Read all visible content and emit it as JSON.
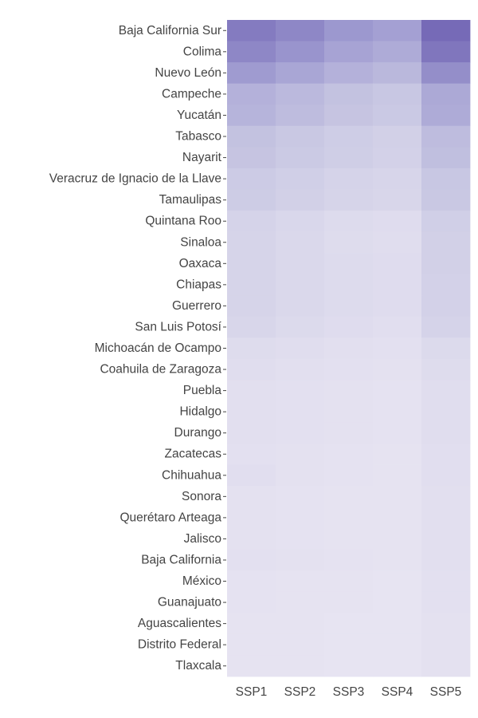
{
  "chart_data": {
    "type": "heatmap",
    "title": "",
    "xlabel": "",
    "ylabel": "",
    "x": [
      "SSP1",
      "SSP2",
      "SSP3",
      "SSP4",
      "SSP5"
    ],
    "y": [
      "Baja California Sur",
      "Colima",
      "Nuevo León",
      "Campeche",
      "Yucatán",
      "Tabasco",
      "Nayarit",
      "Veracruz de Ignacio de la Llave",
      "Tamaulipas",
      "Quintana Roo",
      "Sinaloa",
      "Oaxaca",
      "Chiapas",
      "Guerrero",
      "San Luis Potosí",
      "Michoacán de Ocampo",
      "Coahuila de Zaragoza",
      "Puebla",
      "Hidalgo",
      "Durango",
      "Zacatecas",
      "Chihuahua",
      "Sonora",
      "Querétaro Arteaga",
      "Jalisco",
      "Baja California",
      "México",
      "Guanajuato",
      "Aguascalientes",
      "Distrito Federal",
      "Tlaxcala"
    ],
    "values": [
      [
        0.85,
        0.78,
        0.68,
        0.62,
        0.95
      ],
      [
        0.78,
        0.7,
        0.6,
        0.54,
        0.88
      ],
      [
        0.66,
        0.58,
        0.5,
        0.45,
        0.74
      ],
      [
        0.5,
        0.44,
        0.38,
        0.34,
        0.56
      ],
      [
        0.48,
        0.42,
        0.36,
        0.32,
        0.54
      ],
      [
        0.38,
        0.33,
        0.28,
        0.25,
        0.42
      ],
      [
        0.36,
        0.31,
        0.27,
        0.24,
        0.4
      ],
      [
        0.3,
        0.26,
        0.22,
        0.2,
        0.34
      ],
      [
        0.29,
        0.25,
        0.21,
        0.19,
        0.33
      ],
      [
        0.22,
        0.18,
        0.14,
        0.12,
        0.26
      ],
      [
        0.21,
        0.17,
        0.13,
        0.11,
        0.25
      ],
      [
        0.21,
        0.17,
        0.14,
        0.12,
        0.25
      ],
      [
        0.21,
        0.17,
        0.14,
        0.12,
        0.24
      ],
      [
        0.21,
        0.17,
        0.14,
        0.12,
        0.24
      ],
      [
        0.19,
        0.15,
        0.12,
        0.1,
        0.22
      ],
      [
        0.13,
        0.11,
        0.09,
        0.08,
        0.15
      ],
      [
        0.11,
        0.09,
        0.08,
        0.07,
        0.13
      ],
      [
        0.09,
        0.08,
        0.07,
        0.06,
        0.11
      ],
      [
        0.09,
        0.08,
        0.07,
        0.06,
        0.11
      ],
      [
        0.09,
        0.08,
        0.07,
        0.06,
        0.11
      ],
      [
        0.08,
        0.07,
        0.06,
        0.05,
        0.1
      ],
      [
        0.1,
        0.07,
        0.06,
        0.05,
        0.1
      ],
      [
        0.07,
        0.06,
        0.05,
        0.05,
        0.09
      ],
      [
        0.07,
        0.06,
        0.05,
        0.05,
        0.09
      ],
      [
        0.07,
        0.06,
        0.05,
        0.05,
        0.09
      ],
      [
        0.08,
        0.07,
        0.06,
        0.05,
        0.09
      ],
      [
        0.06,
        0.05,
        0.05,
        0.04,
        0.08
      ],
      [
        0.06,
        0.05,
        0.05,
        0.04,
        0.08
      ],
      [
        0.05,
        0.05,
        0.04,
        0.04,
        0.07
      ],
      [
        0.05,
        0.05,
        0.04,
        0.04,
        0.07
      ],
      [
        0.05,
        0.05,
        0.04,
        0.04,
        0.07
      ]
    ],
    "colorscale": [
      "#ebe8f4",
      "#c9c8e3",
      "#9e9ad0",
      "#6f62b2"
    ],
    "legend": "none",
    "grid": false
  }
}
